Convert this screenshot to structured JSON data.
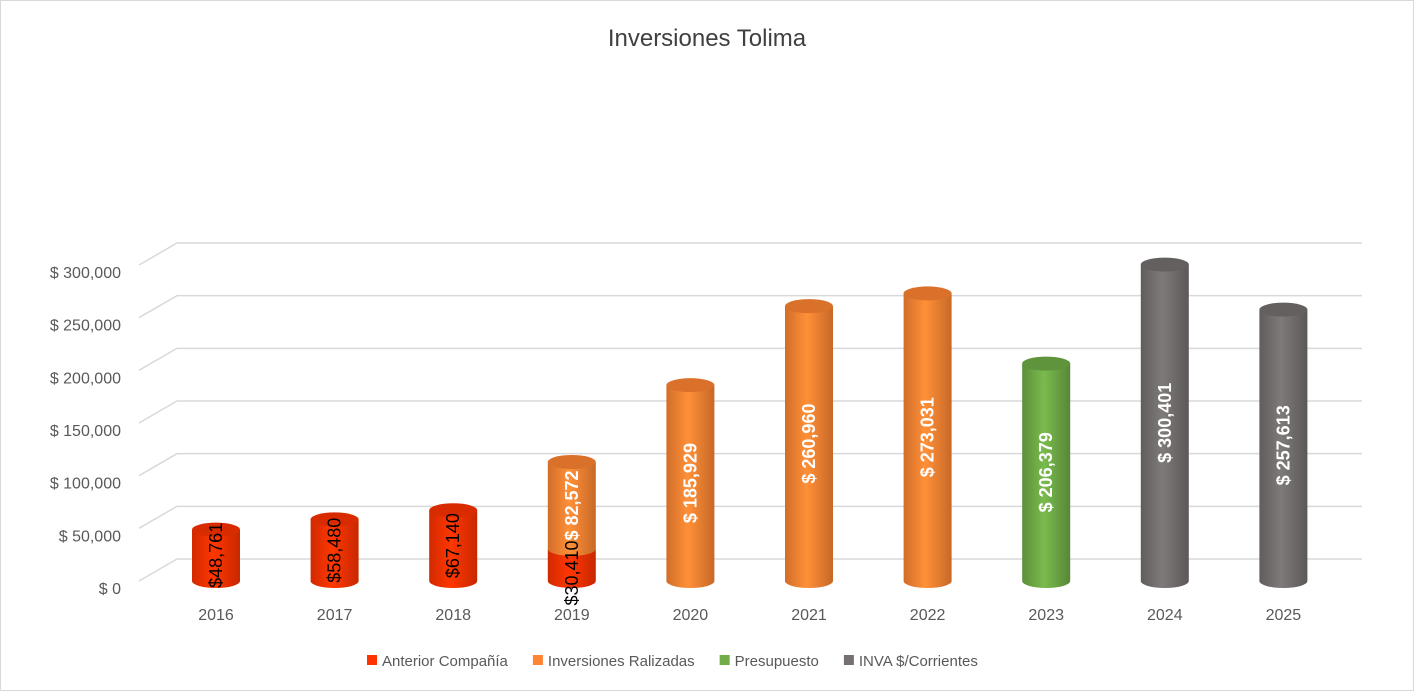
{
  "chart_data": {
    "type": "bar",
    "title": "Inversiones Tolima",
    "xlabel": "",
    "ylabel": "",
    "categories": [
      "2016",
      "2017",
      "2018",
      "2019",
      "2020",
      "2021",
      "2022",
      "2023",
      "2024",
      "2025"
    ],
    "series": [
      {
        "name": "Anterior Compañía",
        "color": "#ff3300",
        "values": [
          48761,
          58480,
          67140,
          30410,
          null,
          null,
          null,
          null,
          null,
          null
        ],
        "labels": [
          "$48,761",
          "$58,480",
          "$67,140",
          "$30,410",
          "",
          "",
          "",
          "",
          "",
          ""
        ]
      },
      {
        "name": "Inversiones Ralizadas",
        "color": "#ff8533",
        "values": [
          null,
          null,
          null,
          82572,
          185929,
          260960,
          273031,
          null,
          null,
          null
        ],
        "labels": [
          "",
          "",
          "",
          "$ 82,572",
          "$ 185,929",
          "$ 260,960",
          "$ 273,031",
          "",
          "",
          ""
        ]
      },
      {
        "name": "Presupuesto",
        "color": "#70ad47",
        "values": [
          null,
          null,
          null,
          null,
          null,
          null,
          null,
          206379,
          null,
          null
        ],
        "labels": [
          "",
          "",
          "",
          "",
          "",
          "",
          "",
          "$ 206,379",
          "",
          ""
        ]
      },
      {
        "name": "INVA $/Corrientes",
        "color": "#767171",
        "values": [
          null,
          null,
          null,
          null,
          null,
          null,
          null,
          null,
          300401,
          257613
        ],
        "labels": [
          "",
          "",
          "",
          "",
          "",
          "",
          "",
          "",
          "$ 300,401",
          "$ 257,613"
        ]
      }
    ],
    "stacked": true,
    "ylim": [
      0,
      300000
    ],
    "yticks": [
      0,
      50000,
      100000,
      150000,
      200000,
      250000,
      300000
    ],
    "ytick_labels": [
      "$ 0",
      "$ 50,000",
      "$ 100,000",
      "$ 150,000",
      "$ 200,000",
      "$ 250,000",
      "$ 300,000"
    ],
    "grid": true,
    "legend_position": "bottom",
    "style": "3d-cylinder"
  }
}
